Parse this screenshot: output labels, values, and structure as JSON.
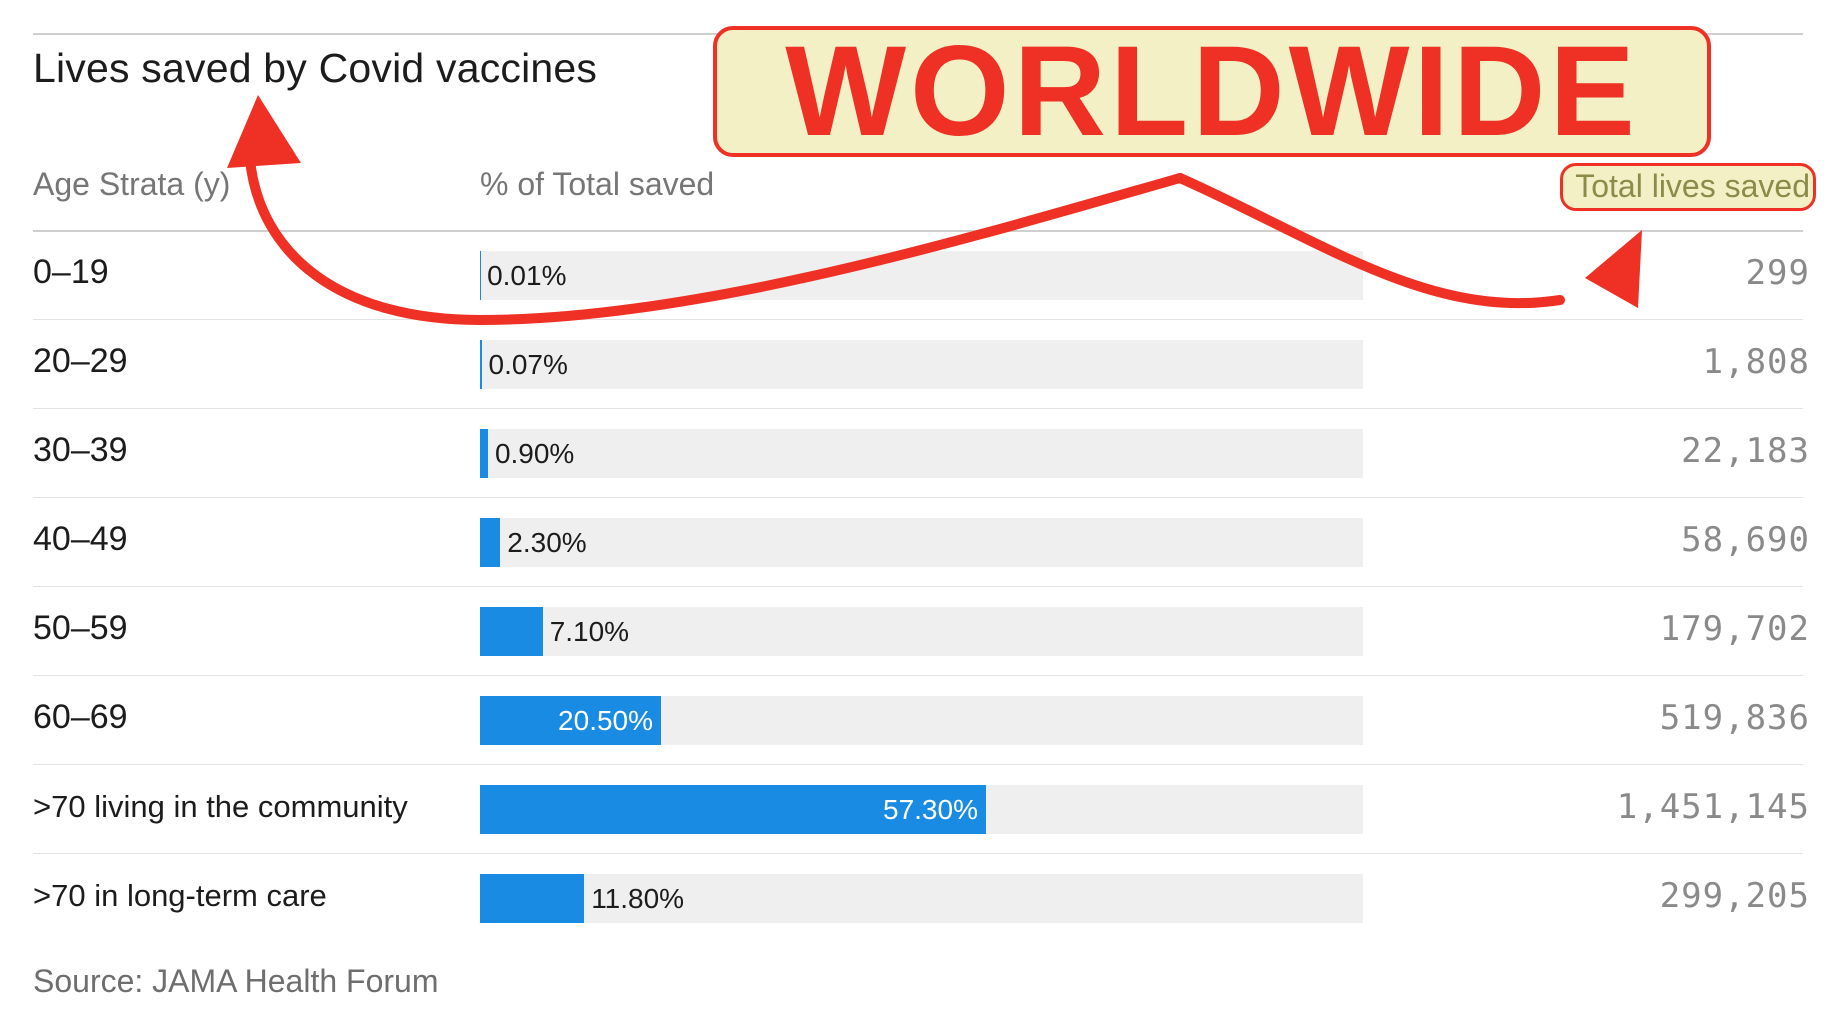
{
  "title": "Lives saved by Covid vaccines",
  "annotation": "WORLDWIDE",
  "headers": {
    "age": "Age Strata (y)",
    "pct": "% of Total saved",
    "total": "Total lives saved"
  },
  "source": "Source: JAMA Health Forum",
  "colors": {
    "bar": "#1a8be3",
    "track": "#efefef",
    "annotation_red": "#ee3124",
    "highlight": "#f3f0c6"
  },
  "chart_data": {
    "type": "table",
    "title": "Lives saved by Covid vaccines",
    "columns": [
      "Age Strata (y)",
      "% of Total saved",
      "Total lives saved"
    ],
    "rows": [
      {
        "age": "0–19",
        "pct": 0.01,
        "pct_label": "0.01%",
        "lives": "299"
      },
      {
        "age": "20–29",
        "pct": 0.07,
        "pct_label": "0.07%",
        "lives": "1,808"
      },
      {
        "age": "30–39",
        "pct": 0.9,
        "pct_label": "0.90%",
        "lives": "22,183"
      },
      {
        "age": "40–49",
        "pct": 2.3,
        "pct_label": "2.30%",
        "lives": "58,690"
      },
      {
        "age": "50–59",
        "pct": 7.1,
        "pct_label": "7.10%",
        "lives": "179,702"
      },
      {
        "age": "60–69",
        "pct": 20.5,
        "pct_label": "20.50%",
        "lives": "519,836"
      },
      {
        "age": ">70 living in the community",
        "pct": 57.3,
        "pct_label": "57.30%",
        "lives": "1,451,145"
      },
      {
        "age": ">70 in long-term care",
        "pct": 11.8,
        "pct_label": "11.80%",
        "lives": "299,205"
      }
    ],
    "bar_max": 100
  }
}
